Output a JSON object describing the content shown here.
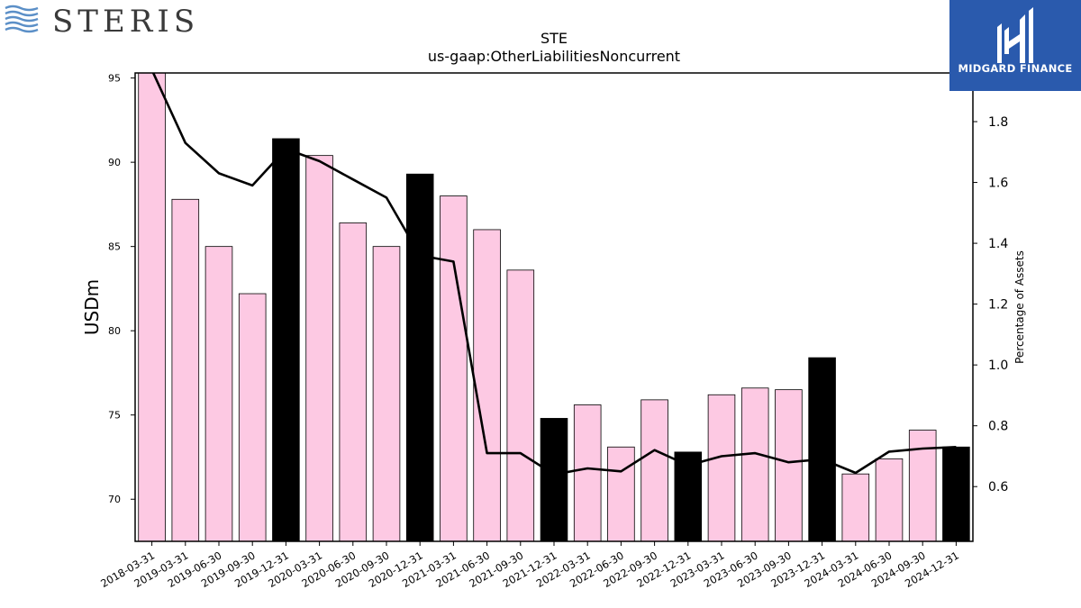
{
  "branding": {
    "left_logo_text": "STERIS",
    "right_logo_text": "MIDGARD FINANCE",
    "right_logo_color": "#2a5aad"
  },
  "chart_data": {
    "type": "bar",
    "title": "STE",
    "subtitle": "us-gaap:OtherLiabilitiesNoncurrent",
    "ylabel": "USDm",
    "y2label": "Percentage of Assets",
    "ylim": [
      67.5,
      95.3
    ],
    "y2lim": [
      0.42,
      1.96
    ],
    "yticks": [
      70,
      75,
      80,
      85,
      90,
      95
    ],
    "y2ticks": [
      0.6,
      0.8,
      1.0,
      1.2,
      1.4,
      1.6,
      1.8
    ],
    "y2tick_labels": [
      "0.6",
      "0.8",
      "1.0",
      "1.2",
      "1.4",
      "1.6",
      "1.8"
    ],
    "categories": [
      "2018-03-31",
      "2019-03-31",
      "2019-06-30",
      "2019-09-30",
      "2019-12-31",
      "2020-03-31",
      "2020-06-30",
      "2020-09-30",
      "2020-12-31",
      "2021-03-31",
      "2021-06-30",
      "2021-09-30",
      "2021-12-31",
      "2022-03-31",
      "2022-06-30",
      "2022-09-30",
      "2022-12-31",
      "2023-03-31",
      "2023-06-30",
      "2023-09-30",
      "2023-12-31",
      "2024-03-31",
      "2024-06-30",
      "2024-09-30",
      "2024-12-31"
    ],
    "series": [
      {
        "values": [
          95.5,
          87.8,
          85.0,
          82.2,
          91.4,
          90.4,
          86.4,
          85.0,
          89.3,
          88.0,
          86.0,
          83.6,
          74.8,
          75.6,
          73.1,
          75.9,
          72.8,
          76.2,
          76.6,
          76.5,
          78.4,
          71.5,
          72.4,
          74.1,
          73.1
        ],
        "highlight": [
          false,
          false,
          false,
          false,
          true,
          false,
          false,
          false,
          true,
          false,
          false,
          false,
          true,
          false,
          false,
          false,
          true,
          false,
          false,
          false,
          true,
          false,
          false,
          false,
          true
        ],
        "color": "#fdc9e3",
        "highlight_color": "#000000"
      },
      {
        "type": "line",
        "axis": "right",
        "values": [
          1.97,
          1.73,
          1.63,
          1.59,
          1.71,
          1.67,
          1.61,
          1.55,
          1.36,
          1.34,
          0.71,
          0.71,
          0.64,
          0.66,
          0.65,
          0.72,
          0.67,
          0.7,
          0.71,
          0.68,
          0.69,
          0.645,
          0.715,
          0.725,
          0.73
        ],
        "color": "#000000"
      }
    ],
    "grid": false
  }
}
